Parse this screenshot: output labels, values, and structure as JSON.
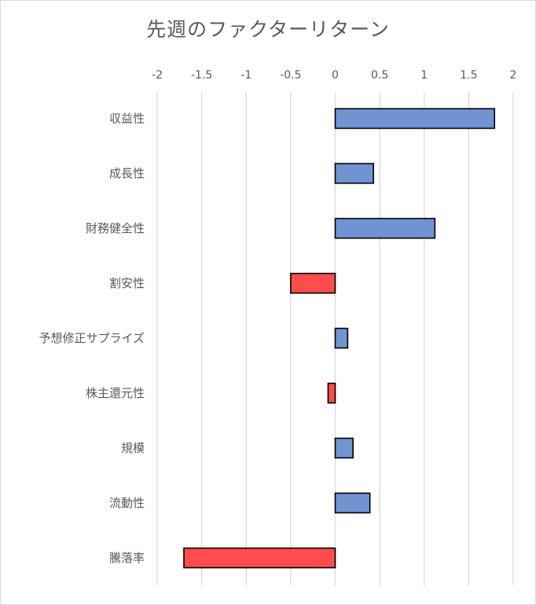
{
  "chart_data": {
    "type": "bar",
    "orientation": "horizontal",
    "title": "先週のファクターリターン",
    "xlabel": "",
    "ylabel": "",
    "xlim": [
      -2,
      2
    ],
    "x_ticks": [
      "-2",
      "-1.5",
      "-1",
      "-0.5",
      "0",
      "0.5",
      "1",
      "1.5",
      "2"
    ],
    "x_tick_values": [
      -2,
      -1.5,
      -1,
      -0.5,
      0,
      0.5,
      1,
      1.5,
      2
    ],
    "grid": true,
    "x_axis_position": "top",
    "categories": [
      "収益性",
      "成長性",
      "財務健全性",
      "割安性",
      "予想修正サプライズ",
      "株主還元性",
      "規模",
      "流動性",
      "騰落率"
    ],
    "values": [
      1.79,
      0.43,
      1.12,
      -0.5,
      0.14,
      -0.08,
      0.2,
      0.39,
      -1.7
    ],
    "colors": {
      "positive": "#7094d2",
      "negative": "#ff4c4c",
      "bar_border": "#000000",
      "grid": "#d9d9d9",
      "text": "#595959"
    }
  }
}
